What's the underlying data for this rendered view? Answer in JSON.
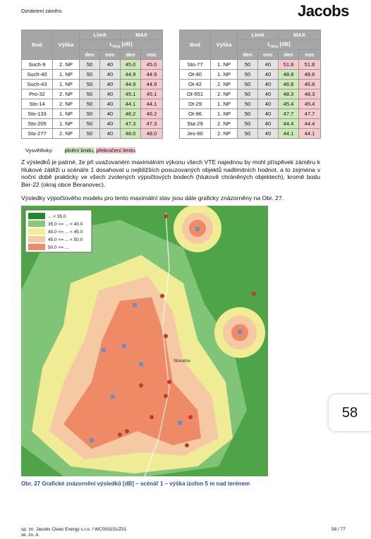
{
  "header": {
    "title": "Oznámení záměru",
    "logo": "Jacobs"
  },
  "tables": [
    {
      "header": {
        "bod": "Bod",
        "vyska": "Výška",
        "limit": "Limit",
        "max": "MAX",
        "unit_symbol": "L",
        "unit_subscript": "Aeq",
        "unit_suffix": "[dB]",
        "den": "den",
        "noc": "noc"
      },
      "rows": [
        [
          "Such-9",
          "2. NP",
          "50",
          "40",
          "45.0",
          "45.0"
        ],
        [
          "Such-40",
          "1. NP",
          "50",
          "40",
          "44.9",
          "44.9"
        ],
        [
          "Such-43",
          "1. NP",
          "50",
          "40",
          "44.9",
          "44.9"
        ],
        [
          "Pro-32",
          "2. NP",
          "50",
          "40",
          "45.1",
          "45.1"
        ],
        [
          "Sto-14",
          "2. NP",
          "50",
          "40",
          "44.1",
          "44.1"
        ],
        [
          "Sto-133",
          "1. NP",
          "50",
          "40",
          "46.2",
          "46.2"
        ],
        [
          "Sto-205",
          "1. NP",
          "50",
          "40",
          "47.3",
          "47.3"
        ],
        [
          "Sto-277",
          "2. NP",
          "50",
          "40",
          "48.0",
          "48.0"
        ]
      ]
    },
    {
      "header": {
        "bod": "Bod",
        "vyska": "Výška",
        "limit": "Limit",
        "max": "MAX",
        "unit_symbol": "L",
        "unit_subscript": "Aeq",
        "unit_suffix": "[dB]",
        "den": "den",
        "noc": "noc"
      },
      "rows": [
        [
          "Sto-77",
          "1. NP",
          "50",
          "40",
          "51.8",
          "51.8"
        ],
        [
          "Ot-40",
          "1. NP",
          "50",
          "40",
          "48.8",
          "48.8"
        ],
        [
          "Ot-42",
          "2. NP",
          "50",
          "40",
          "46.8",
          "46.8"
        ],
        [
          "Ot-651",
          "2. NP",
          "50",
          "40",
          "48.3",
          "48.3"
        ],
        [
          "Ot-29",
          "1. NP",
          "50",
          "40",
          "45.4",
          "45.4"
        ],
        [
          "Ot-96",
          "1. NP",
          "50",
          "40",
          "47.7",
          "47.7"
        ],
        [
          "Sta-29",
          "2. NP",
          "50",
          "40",
          "44.4",
          "44.4"
        ],
        [
          "Jes-60",
          "2. NP",
          "50",
          "40",
          "44.1",
          "44.1"
        ]
      ]
    }
  ],
  "explanation": {
    "label": "Vysvětlivky:",
    "ok": "plnění limitu,",
    "over": "překročení limitu"
  },
  "paragraphs": [
    "Z výsledků je patrné, že při uvažovaném maximálním výkonu všech VTE najednou by mohl příspěvek záměru k hlukové zátěži u scénáře 1 dosahovat u nejbližších posuzovaných objektů nadlimitních hodnot, a to zejména v noční době prakticky ve všech zvolených výpočtových bodech (hlukově chráněných objektech), kromě bodu Ber-22 (okraj obce Beranovec).",
    "Výsledky výpočtového modelu pro tento maximální stav jsou dále graficky znázorněny na Obr. 27."
  ],
  "map_legend": [
    {
      "label": "... < 35.0",
      "color": "#1f8a2a"
    },
    {
      "label": "35.0 <= ... < 40.0",
      "color": "#86c97a"
    },
    {
      "label": "40.0 <= ... < 45.0",
      "color": "#f2ee94"
    },
    {
      "label": "45.0 <= ... < 50.0",
      "color": "#f6caa4"
    },
    {
      "label": "50.0 <= ...",
      "color": "#ee8a66"
    }
  ],
  "map_town": "Stonařov",
  "caption": "Obr. 27 Grafické znázornění výsledků [dB] – scénář 1 – výška izofon 5 m nad terénem",
  "footer": {
    "ref": "sp. zn. Jacobs Clean Energy s.r.o. / WC003151/Z01",
    "ref2": "sk. zn. A",
    "page": "58 / 77"
  },
  "page_badge": "58"
}
